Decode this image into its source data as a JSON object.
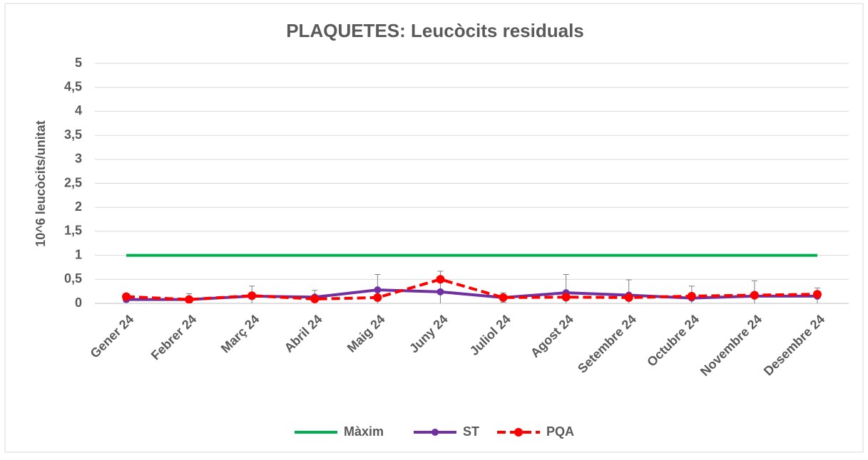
{
  "chart_data": {
    "type": "line",
    "title": "PLAQUETES: Leucòcits residuals",
    "y_label": "10^6 leucòcits/unitat",
    "categories": [
      "Gener 24",
      "Febrer 24",
      "Març 24",
      "Abril 24",
      "Maig 24",
      "Juny 24",
      "Juliol 24",
      "Agost 24",
      "Setembre 24",
      "Octubre 24",
      "Novembre 24",
      "Desembre 24"
    ],
    "series": [
      {
        "name": "Màxim",
        "color": "#00b050",
        "values": [
          1,
          1,
          1,
          1,
          1,
          1,
          1,
          1,
          1,
          1,
          1,
          1
        ]
      },
      {
        "name": "ST",
        "color": "#7030a0",
        "values": [
          0.08,
          0.08,
          0.15,
          0.13,
          0.28,
          0.24,
          0.12,
          0.22,
          0.17,
          0.11,
          0.15,
          0.15
        ],
        "errors": [
          0.05,
          0.12,
          0.21,
          0.14,
          0.32,
          0.43,
          0.1,
          0.38,
          0.32,
          0.25,
          0.32,
          0.17
        ]
      },
      {
        "name": "PQA",
        "color": "#ff0000",
        "values": [
          0.14,
          0.08,
          0.16,
          0.09,
          0.12,
          0.5,
          0.12,
          0.13,
          0.12,
          0.15,
          0.17,
          0.19
        ]
      }
    ],
    "ylim": [
      0,
      5
    ],
    "yticks": [
      0,
      {
        "value": 0.5,
        "label": "0,5"
      },
      1,
      {
        "value": 1.5,
        "label": "1,5"
      },
      2,
      {
        "value": 2.5,
        "label": "2,5"
      },
      3,
      {
        "value": 3.5,
        "label": "3,5"
      },
      4,
      {
        "value": 4.5,
        "label": "4,5"
      },
      5
    ],
    "grid": true,
    "legend": "bottom"
  }
}
